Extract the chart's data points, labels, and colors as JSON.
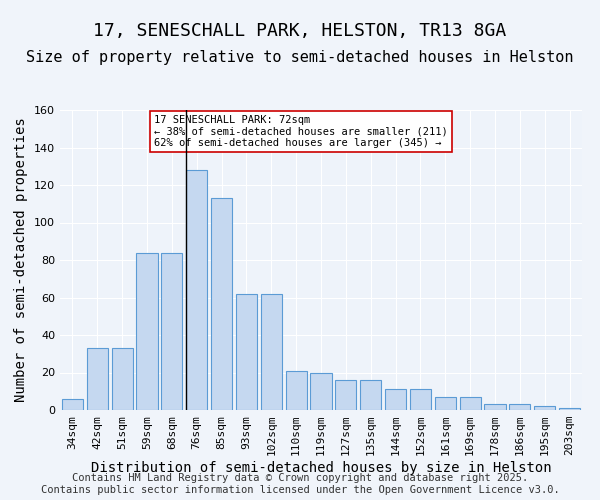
{
  "title1": "17, SENESCHALL PARK, HELSTON, TR13 8GA",
  "title2": "Size of property relative to semi-detached houses in Helston",
  "xlabel": "Distribution of semi-detached houses by size in Helston",
  "ylabel": "Number of semi-detached properties",
  "categories": [
    "34sqm",
    "42sqm",
    "51sqm",
    "59sqm",
    "68sqm",
    "76sqm",
    "85sqm",
    "93sqm",
    "102sqm",
    "110sqm",
    "119sqm",
    "127sqm",
    "135sqm",
    "144sqm",
    "152sqm",
    "161sqm",
    "169sqm",
    "178sqm",
    "186sqm",
    "195sqm",
    "203sqm"
  ],
  "values": [
    6,
    33,
    33,
    84,
    84,
    128,
    113,
    62,
    62,
    21,
    20,
    16,
    16,
    11,
    11,
    7,
    7,
    3,
    3,
    2,
    1
  ],
  "bar_color": "#c5d8f0",
  "bar_edge_color": "#5b9bd5",
  "subject_bar_index": 5,
  "subject_line_color": "#000000",
  "annotation_text": "17 SENESCHALL PARK: 72sqm\n← 38% of semi-detached houses are smaller (211)\n62% of semi-detached houses are larger (345) →",
  "annotation_box_color": "#ffffff",
  "annotation_box_edge_color": "#cc0000",
  "ylim": [
    0,
    160
  ],
  "yticks": [
    0,
    20,
    40,
    60,
    80,
    100,
    120,
    140,
    160
  ],
  "background_color": "#eef3fa",
  "grid_color": "#ffffff",
  "footer_text": "Contains HM Land Registry data © Crown copyright and database right 2025.\nContains public sector information licensed under the Open Government Licence v3.0.",
  "title1_fontsize": 13,
  "title2_fontsize": 11,
  "xlabel_fontsize": 10,
  "ylabel_fontsize": 10,
  "tick_fontsize": 8,
  "footer_fontsize": 7.5
}
